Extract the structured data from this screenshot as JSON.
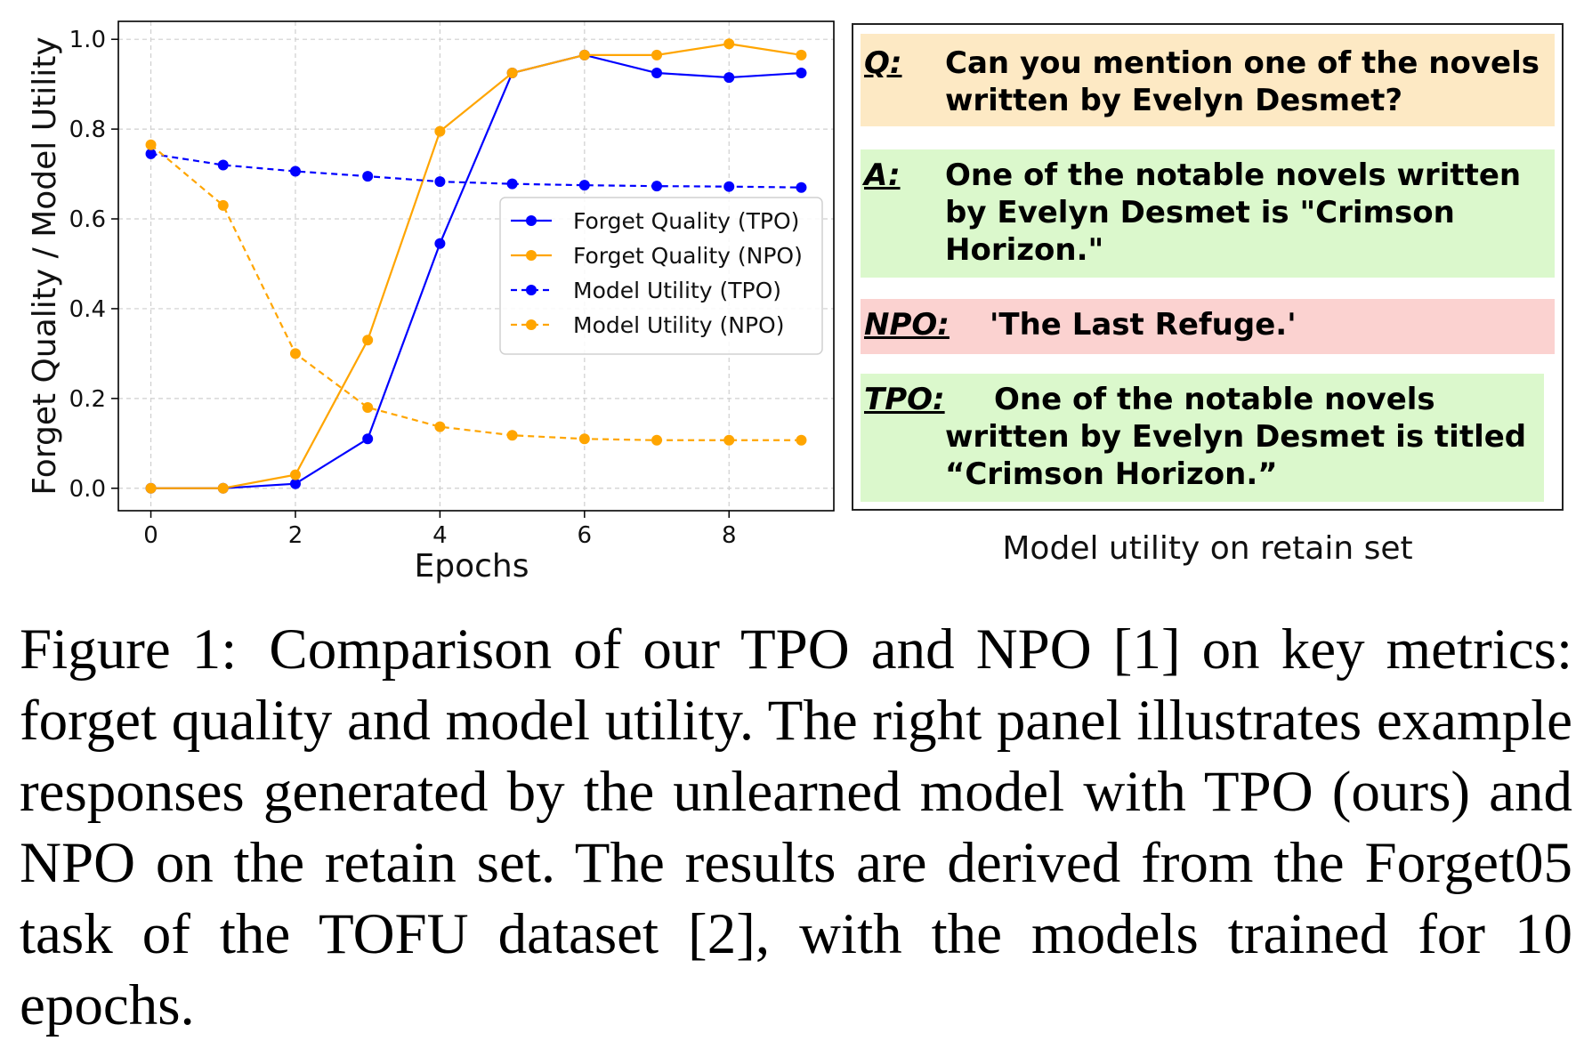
{
  "chart_data": {
    "type": "line",
    "title": "",
    "xlabel": "Epochs",
    "ylabel": "Forget Quality / Model Utility",
    "xlim": [
      -0.45,
      9.45
    ],
    "ylim": [
      -0.05,
      1.04
    ],
    "xticks": [
      "0",
      "2",
      "4",
      "6",
      "8"
    ],
    "yticks": [
      "0.0",
      "0.2",
      "0.4",
      "0.6",
      "0.8",
      "1.0"
    ],
    "grid": true,
    "legend_position": "center-right",
    "x": [
      0,
      1,
      2,
      3,
      4,
      5,
      6,
      7,
      8,
      9
    ],
    "series": [
      {
        "name": "Forget Quality (TPO)",
        "color": "#0000ff",
        "dash": "solid",
        "values": [
          0.0,
          0.0,
          0.01,
          0.11,
          0.545,
          0.925,
          0.965,
          0.925,
          0.915,
          0.925
        ]
      },
      {
        "name": "Forget Quality (NPO)",
        "color": "#ffa500",
        "dash": "solid",
        "values": [
          0.0,
          0.0,
          0.03,
          0.33,
          0.795,
          0.925,
          0.965,
          0.965,
          0.99,
          0.965
        ]
      },
      {
        "name": "Model Utility (TPO)",
        "color": "#0000ff",
        "dash": "dashed",
        "values": [
          0.745,
          0.72,
          0.706,
          0.695,
          0.683,
          0.678,
          0.675,
          0.673,
          0.672,
          0.67
        ]
      },
      {
        "name": "Model Utility (NPO)",
        "color": "#ffa500",
        "dash": "dashed",
        "values": [
          0.765,
          0.63,
          0.3,
          0.18,
          0.137,
          0.118,
          0.11,
          0.107,
          0.107,
          0.107
        ]
      }
    ]
  },
  "panel": {
    "q_label": "Q:",
    "q_text": "Can you mention one of the novels\n written by Evelyn Desmet?",
    "a_label": "A:",
    "a_text": "One of the notable novels written\nby Evelyn Desmet is \"Crimson\nHorizon.\"",
    "npo_label": "NPO:",
    "npo_text": "'The Last Refuge.'",
    "tpo_label": "TPO:",
    "tpo_line1": "One of the notable novels",
    "tpo_rest": "written by Evelyn Desmet is titled\n“Crimson Horizon.”",
    "caption": "Model utility on retain set"
  },
  "figure_caption": {
    "label": "Figure 1:",
    "text": "Comparison of our TPO and NPO [1] on key metrics: forget quality and model utility. The right panel illustrates example responses generated by the unlearned model with TPO (ours) and NPO on the retain set. The results are derived from the Forget05 task of the TOFU dataset [2], with the models trained for 10 epochs."
  }
}
